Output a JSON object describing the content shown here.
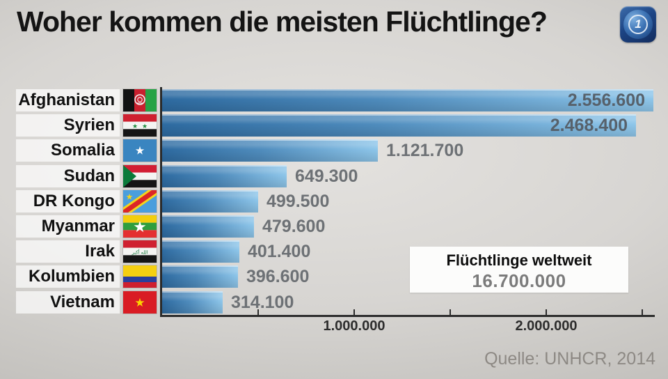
{
  "header": {
    "title": "Woher kommen die meisten Flüchtlinge?",
    "logo": "ard-tagesschau-logo",
    "logo_one": "1"
  },
  "chart_data": {
    "type": "bar",
    "orientation": "horizontal",
    "title": "Woher kommen die meisten Flüchtlinge?",
    "categories": [
      "Afghanistan",
      "Syrien",
      "Somalia",
      "Sudan",
      "DR Kongo",
      "Myanmar",
      "Irak",
      "Kolumbien",
      "Vietnam"
    ],
    "values": [
      2556600,
      2468400,
      1121700,
      649300,
      499500,
      479600,
      401400,
      396600,
      314100
    ],
    "rows": [
      {
        "country": "Afghanistan",
        "flag": "afghanistan",
        "value": 2556600,
        "value_label": "2.556.600"
      },
      {
        "country": "Syrien",
        "flag": "syria",
        "value": 2468400,
        "value_label": "2.468.400"
      },
      {
        "country": "Somalia",
        "flag": "somalia",
        "value": 1121700,
        "value_label": "1.121.700"
      },
      {
        "country": "Sudan",
        "flag": "sudan",
        "value": 649300,
        "value_label": "649.300"
      },
      {
        "country": "DR Kongo",
        "flag": "dr-congo",
        "value": 499500,
        "value_label": "499.500"
      },
      {
        "country": "Myanmar",
        "flag": "myanmar",
        "value": 479600,
        "value_label": "479.600"
      },
      {
        "country": "Irak",
        "flag": "iraq",
        "value": 401400,
        "value_label": "401.400"
      },
      {
        "country": "Kolumbien",
        "flag": "colombia",
        "value": 396600,
        "value_label": "396.600"
      },
      {
        "country": "Vietnam",
        "flag": "vietnam",
        "value": 314100,
        "value_label": "314.100"
      }
    ],
    "x_axis": {
      "min": 0,
      "max": 2565000,
      "grid": false,
      "ticks": [
        {
          "value": 500000,
          "label": ""
        },
        {
          "value": 1000000,
          "label": "1.000.000"
        },
        {
          "value": 1500000,
          "label": ""
        },
        {
          "value": 2000000,
          "label": "2.000.000"
        },
        {
          "value": 2500000,
          "label": ""
        }
      ]
    },
    "legend": null
  },
  "world_total_box": {
    "title": "Flüchtlinge weltweit",
    "value": "16.700.000"
  },
  "source": "Quelle: UNHCR, 2014",
  "colors": {
    "bar_gradient_start": "#2e6ba1",
    "bar_gradient_end": "#8ec6ea",
    "value_text_outside": "#6d7175",
    "value_text_inside": "#57616b",
    "axis": "#2b2b2b",
    "title_text": "#141414",
    "background_center": "#e4e2df",
    "background_edge": "#aaa8a5",
    "source_text": "#8d8984",
    "total_box_bg": "#fcfcfb"
  }
}
